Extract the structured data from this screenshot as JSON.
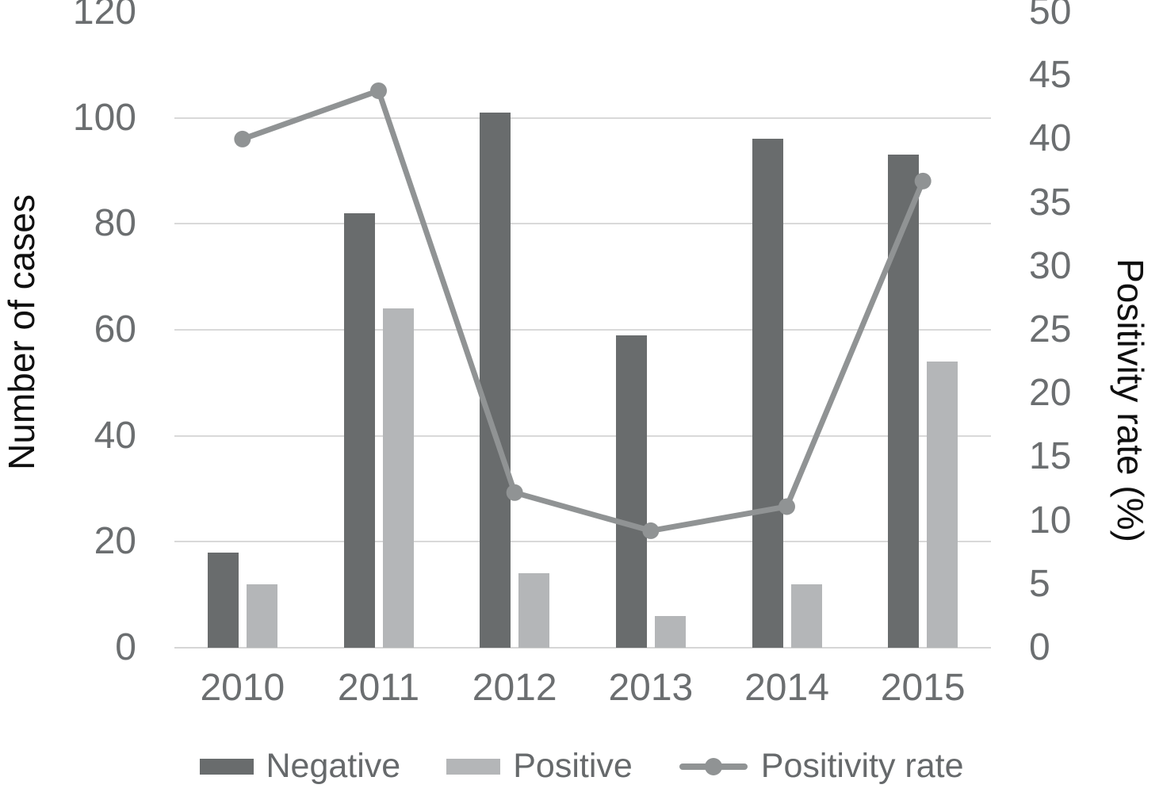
{
  "chart_data": {
    "type": "bar",
    "subtype": "grouped-bars-with-line-overlay",
    "categories": [
      "2010",
      "2011",
      "2012",
      "2013",
      "2014",
      "2015"
    ],
    "series": [
      {
        "name": "Negative",
        "type": "bar",
        "axis": "left",
        "color": "#696c6d",
        "values": [
          18,
          82,
          101,
          59,
          96,
          93
        ]
      },
      {
        "name": "Positive",
        "type": "bar",
        "axis": "left",
        "color": "#b4b6b8",
        "values": [
          12,
          64,
          14,
          6,
          12,
          54
        ]
      },
      {
        "name": "Positivity rate",
        "type": "line",
        "axis": "right",
        "color": "#909394",
        "marker": "circle",
        "values": [
          40.0,
          43.8,
          12.2,
          9.2,
          11.1,
          36.7
        ]
      }
    ],
    "left_axis": {
      "label": "Number of cases",
      "min": 0,
      "max": 120,
      "step": 20,
      "ticks": [
        "0",
        "20",
        "40",
        "60",
        "80",
        "100",
        "120"
      ]
    },
    "right_axis": {
      "label": "Positivity rate (%)",
      "min": 0,
      "max": 50,
      "step": 5,
      "ticks": [
        "0",
        "5",
        "10",
        "15",
        "20",
        "25",
        "30",
        "35",
        "40",
        "45",
        "50"
      ]
    },
    "grid": "horizontal",
    "legend_position": "bottom",
    "title": ""
  },
  "colors": {
    "gridline": "#d9d9d9",
    "tick_text": "#6b6e70",
    "axis_title_text": "#0f0f0f",
    "background": "#ffffff"
  },
  "legend": {
    "items": [
      {
        "label": "Negative",
        "swatch": "dark-gray-bar"
      },
      {
        "label": "Positive",
        "swatch": "light-gray-bar"
      },
      {
        "label": "Positivity rate",
        "swatch": "gray-line-with-dot"
      }
    ]
  }
}
